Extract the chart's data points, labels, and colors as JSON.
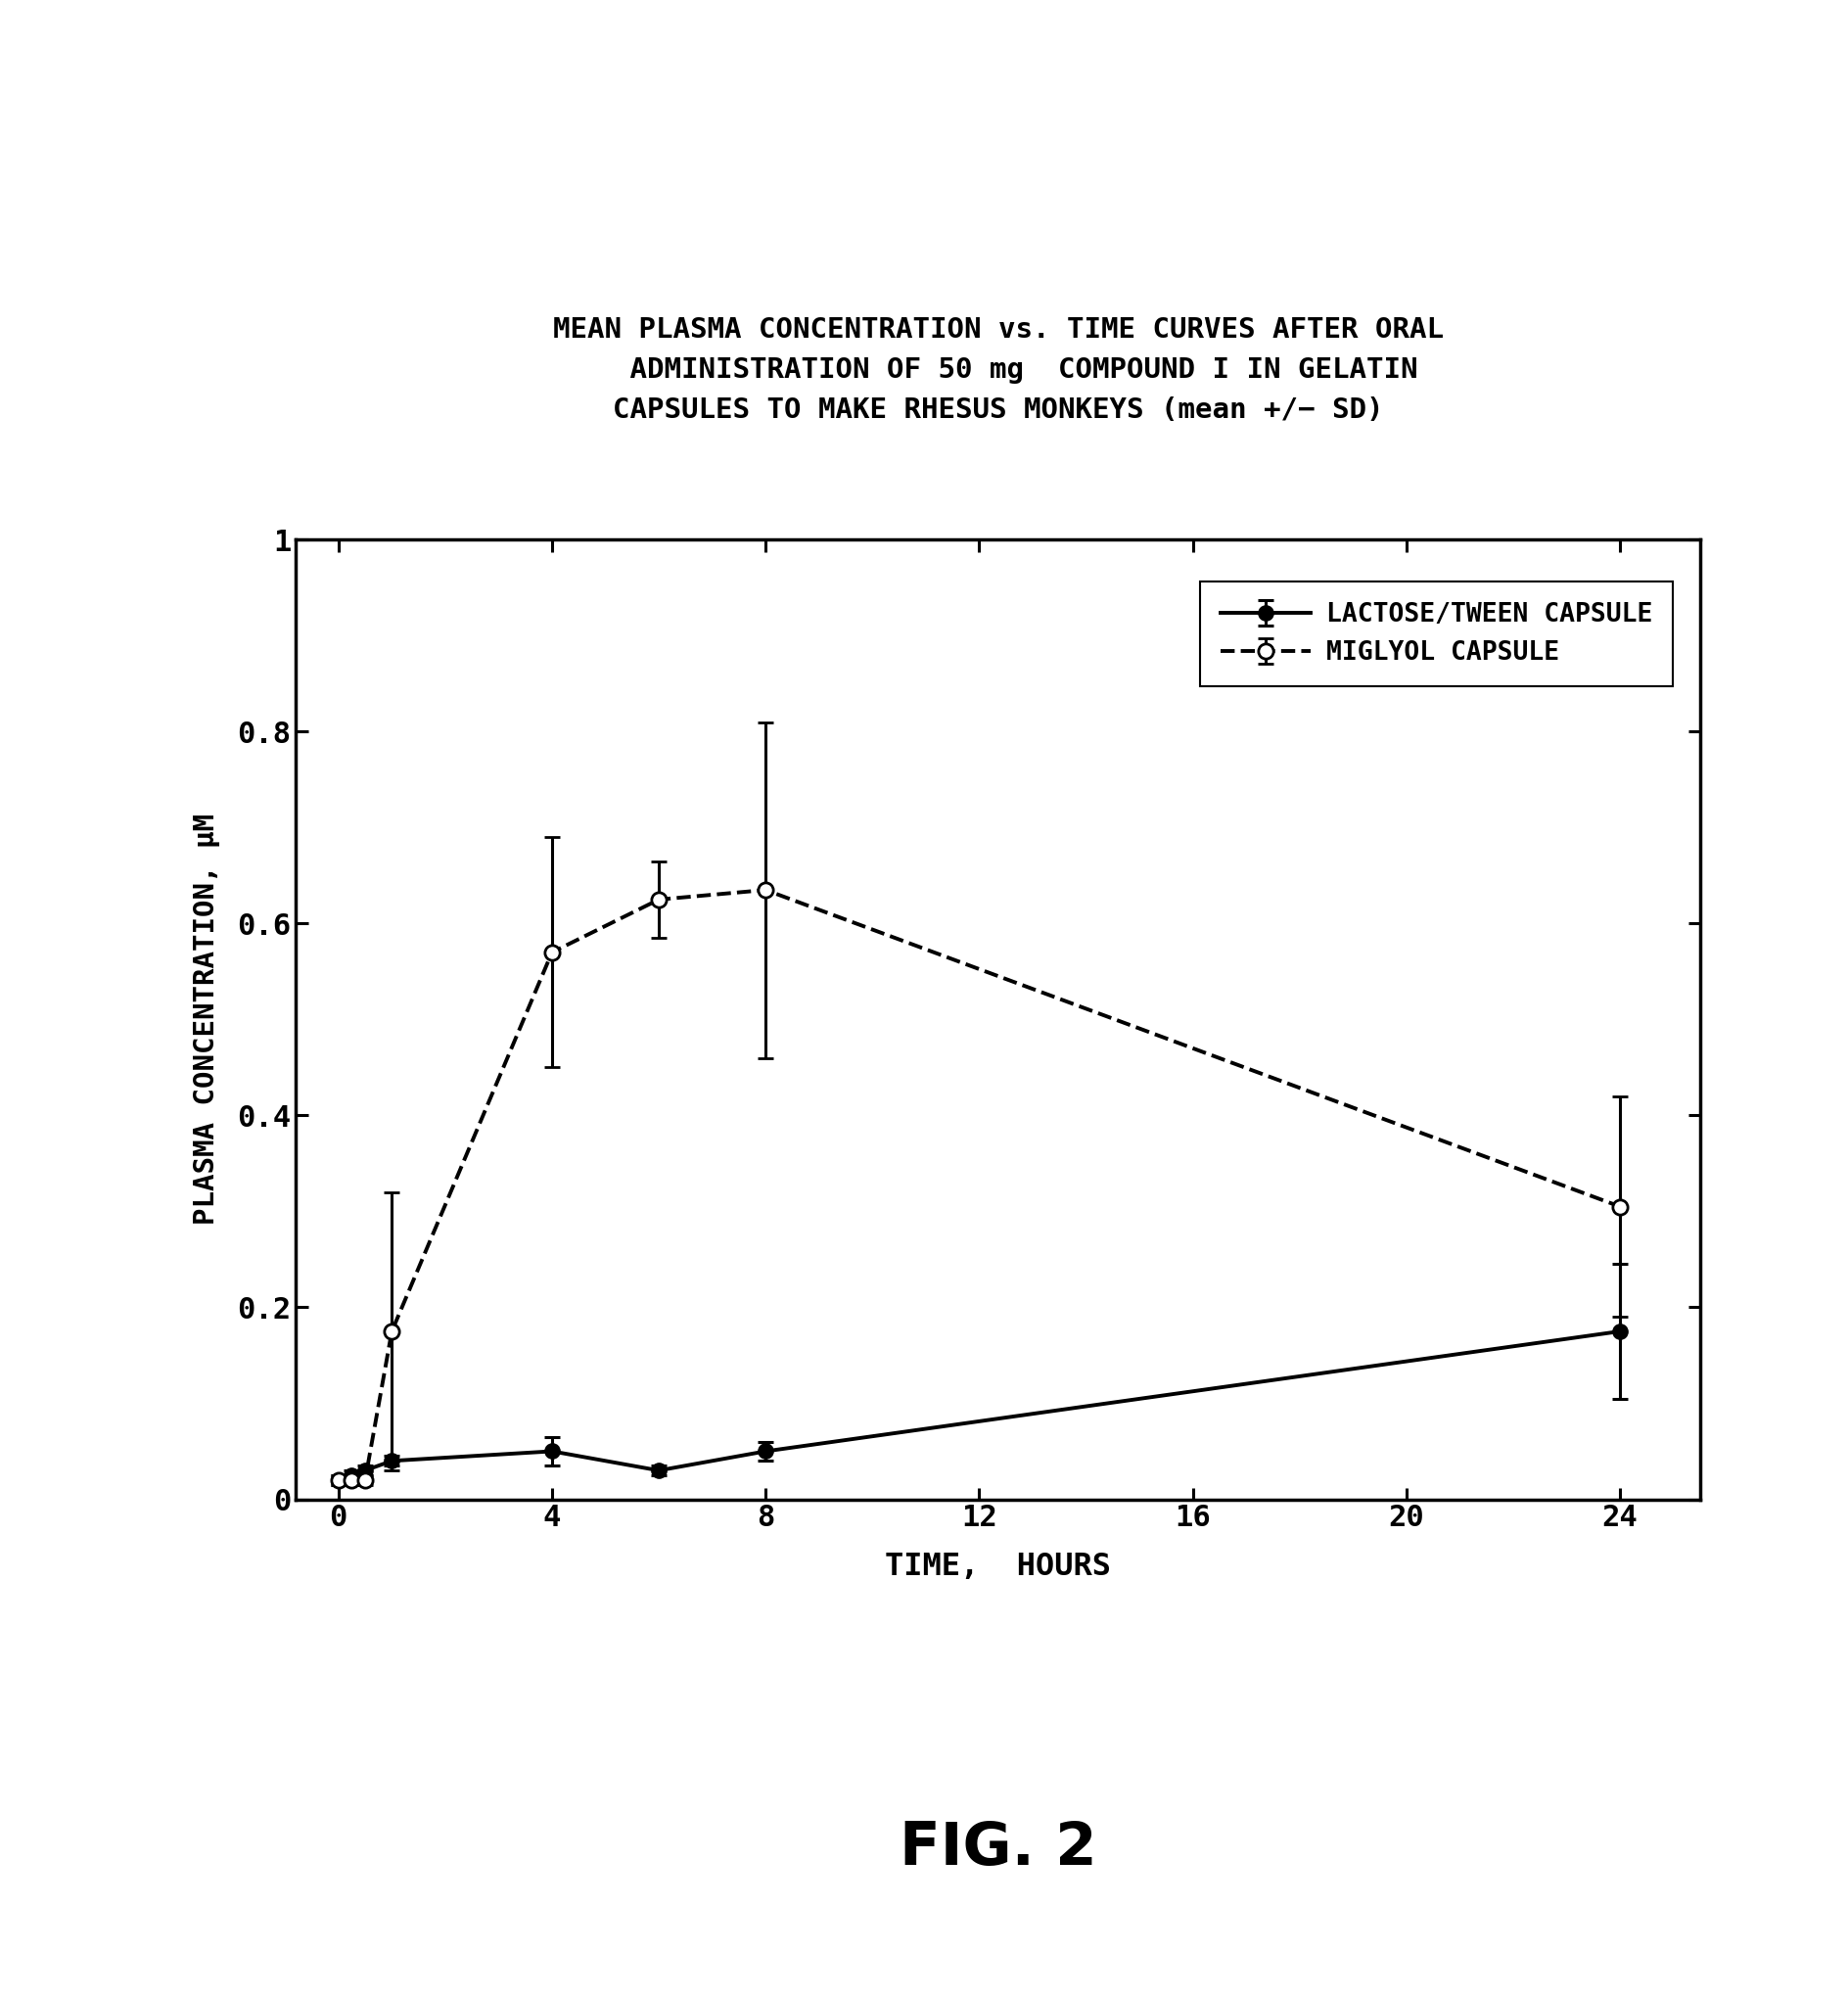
{
  "title_line1": "MEAN PLASMA CONCENTRATION vs.TIME  CURVES AFTER ORAL",
  "title_line2": "ADMINISTRATION OF 50 mg  COMPOUND I IN GELATIN",
  "title_line3": "CAPSULES TO MAKE RHESUS MONKEYS (mean +/− SD)",
  "xlabel": "TIME,  HOURS",
  "ylabel": "PLASMA CONCENTRATION, μM",
  "fig_label": "FIG. 2",
  "lactose_x": [
    0,
    0.25,
    0.5,
    1,
    4,
    6,
    8,
    24
  ],
  "lactose_y": [
    0.02,
    0.025,
    0.03,
    0.04,
    0.05,
    0.03,
    0.05,
    0.175
  ],
  "lactose_yerr": [
    0.005,
    0.005,
    0.005,
    0.005,
    0.015,
    0.005,
    0.01,
    0.07
  ],
  "miglyol_x": [
    0,
    0.25,
    0.5,
    1,
    4,
    6,
    8,
    24
  ],
  "miglyol_y": [
    0.02,
    0.02,
    0.02,
    0.175,
    0.57,
    0.625,
    0.635,
    0.305
  ],
  "miglyol_yerr": [
    0.005,
    0.005,
    0.005,
    0.145,
    0.12,
    0.04,
    0.175,
    0.115
  ],
  "ylim": [
    0,
    1.0
  ],
  "ytick_vals": [
    0,
    0.2,
    0.4,
    0.6,
    0.8,
    1.0
  ],
  "ytick_labels": [
    "0",
    "0.2",
    "0.4",
    "0.6",
    "0.8",
    "1"
  ],
  "xticks": [
    0,
    4,
    8,
    12,
    16,
    20,
    24
  ],
  "background_color": "#ffffff",
  "line_color": "#000000",
  "legend_lactose": "LACTOSE/TWEEN CAPSULE",
  "legend_miglyol": "MIGLYOL CAPSULE"
}
